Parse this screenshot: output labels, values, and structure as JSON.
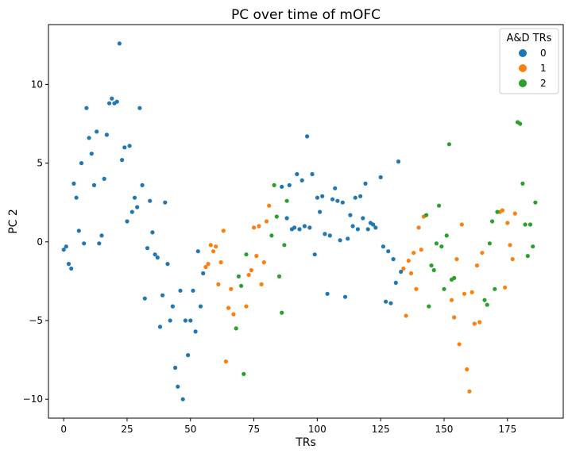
{
  "chart_data": {
    "type": "scatter",
    "title": "PC over time of mOFC",
    "xlabel": "TRs",
    "ylabel": "PC 2",
    "xlim": [
      -6,
      197
    ],
    "ylim": [
      -11.2,
      13.8
    ],
    "xticks": [
      0,
      25,
      50,
      75,
      100,
      125,
      150,
      175
    ],
    "yticks": [
      -10,
      -5,
      0,
      5,
      10
    ],
    "grid": false,
    "legend": {
      "title": "A&D TRs",
      "placement": "top-right"
    },
    "series": [
      {
        "name": "0",
        "color": "#1f77b4",
        "points": [
          [
            0,
            -0.5
          ],
          [
            1,
            -0.3
          ],
          [
            2,
            -1.4
          ],
          [
            3,
            -1.7
          ],
          [
            4,
            3.7
          ],
          [
            5,
            2.8
          ],
          [
            6,
            0.7
          ],
          [
            7,
            5.0
          ],
          [
            8,
            -0.1
          ],
          [
            9,
            8.5
          ],
          [
            10,
            6.6
          ],
          [
            11,
            5.6
          ],
          [
            12,
            3.6
          ],
          [
            13,
            7.0
          ],
          [
            14,
            -0.1
          ],
          [
            15,
            0.4
          ],
          [
            16,
            4.0
          ],
          [
            17,
            6.8
          ],
          [
            18,
            8.8
          ],
          [
            19,
            9.1
          ],
          [
            20,
            8.8
          ],
          [
            21,
            8.9
          ],
          [
            22,
            12.6
          ],
          [
            23,
            5.2
          ],
          [
            24,
            6.0
          ],
          [
            25,
            1.3
          ],
          [
            26,
            6.1
          ],
          [
            27,
            1.9
          ],
          [
            28,
            2.8
          ],
          [
            29,
            2.2
          ],
          [
            30,
            8.5
          ],
          [
            31,
            3.6
          ],
          [
            32,
            -3.6
          ],
          [
            33,
            -0.4
          ],
          [
            34,
            2.6
          ],
          [
            35,
            0.6
          ],
          [
            36,
            -0.8
          ],
          [
            37,
            -1.0
          ],
          [
            38,
            -5.4
          ],
          [
            39,
            -3.4
          ],
          [
            40,
            2.5
          ],
          [
            41,
            -1.4
          ],
          [
            42,
            -5.0
          ],
          [
            43,
            -4.1
          ],
          [
            44,
            -8.0
          ],
          [
            45,
            -9.2
          ],
          [
            46,
            -3.1
          ],
          [
            47,
            -10.0
          ],
          [
            48,
            -5.0
          ],
          [
            49,
            -7.2
          ],
          [
            50,
            -5.0
          ],
          [
            51,
            -3.1
          ],
          [
            52,
            -5.7
          ],
          [
            53,
            -0.6
          ],
          [
            54,
            -4.1
          ],
          [
            55,
            -2.0
          ],
          [
            86,
            3.5
          ],
          [
            88,
            1.5
          ],
          [
            89,
            3.6
          ],
          [
            90,
            0.8
          ],
          [
            91,
            0.9
          ],
          [
            92,
            4.3
          ],
          [
            93,
            0.8
          ],
          [
            94,
            3.9
          ],
          [
            95,
            1.0
          ],
          [
            96,
            6.7
          ],
          [
            97,
            0.9
          ],
          [
            98,
            4.3
          ],
          [
            99,
            -0.8
          ],
          [
            100,
            2.8
          ],
          [
            101,
            1.9
          ],
          [
            102,
            2.9
          ],
          [
            103,
            0.5
          ],
          [
            104,
            -3.3
          ],
          [
            105,
            0.4
          ],
          [
            106,
            2.7
          ],
          [
            107,
            3.4
          ],
          [
            108,
            2.6
          ],
          [
            109,
            0.1
          ],
          [
            110,
            2.5
          ],
          [
            111,
            -3.5
          ],
          [
            112,
            0.2
          ],
          [
            113,
            1.7
          ],
          [
            114,
            1.0
          ],
          [
            115,
            2.8
          ],
          [
            116,
            0.8
          ],
          [
            117,
            2.9
          ],
          [
            118,
            1.5
          ],
          [
            119,
            3.7
          ],
          [
            120,
            0.8
          ],
          [
            121,
            1.2
          ],
          [
            122,
            1.1
          ],
          [
            123,
            0.9
          ],
          [
            125,
            4.1
          ],
          [
            126,
            -0.3
          ],
          [
            127,
            -3.8
          ],
          [
            128,
            -0.6
          ],
          [
            129,
            -3.9
          ],
          [
            130,
            -1.1
          ],
          [
            131,
            -2.6
          ],
          [
            132,
            5.1
          ],
          [
            133,
            -1.9
          ]
        ]
      },
      {
        "name": "1",
        "color": "#ff7f0e",
        "points": [
          [
            56,
            -1.6
          ],
          [
            57,
            -1.4
          ],
          [
            58,
            -0.2
          ],
          [
            59,
            -0.6
          ],
          [
            60,
            -0.3
          ],
          [
            61,
            -2.7
          ],
          [
            62,
            -1.3
          ],
          [
            63,
            0.7
          ],
          [
            64,
            -7.6
          ],
          [
            65,
            -4.2
          ],
          [
            66,
            -3.0
          ],
          [
            67,
            -4.6
          ],
          [
            72,
            -4.1
          ],
          [
            73,
            -2.1
          ],
          [
            74,
            -1.8
          ],
          [
            75,
            0.9
          ],
          [
            76,
            -0.9
          ],
          [
            77,
            1.0
          ],
          [
            78,
            -2.7
          ],
          [
            79,
            -1.3
          ],
          [
            80,
            1.3
          ],
          [
            81,
            2.3
          ],
          [
            134,
            -1.7
          ],
          [
            135,
            -4.7
          ],
          [
            136,
            -1.2
          ],
          [
            137,
            -2.0
          ],
          [
            138,
            -0.7
          ],
          [
            139,
            -3.0
          ],
          [
            140,
            0.9
          ],
          [
            141,
            -0.5
          ],
          [
            142,
            1.6
          ],
          [
            153,
            -3.7
          ],
          [
            154,
            -4.8
          ],
          [
            155,
            -1.1
          ],
          [
            156,
            -6.5
          ],
          [
            157,
            1.1
          ],
          [
            158,
            -3.3
          ],
          [
            159,
            -8.1
          ],
          [
            160,
            -9.5
          ],
          [
            161,
            -3.2
          ],
          [
            162,
            -5.2
          ],
          [
            163,
            -1.5
          ],
          [
            164,
            -5.1
          ],
          [
            165,
            -0.7
          ],
          [
            172,
            1.9
          ],
          [
            173,
            2.0
          ],
          [
            174,
            -2.9
          ],
          [
            175,
            1.2
          ],
          [
            176,
            -0.2
          ],
          [
            177,
            -1.1
          ],
          [
            178,
            1.8
          ]
        ]
      },
      {
        "name": "2",
        "color": "#2ca02c",
        "points": [
          [
            68,
            -5.5
          ],
          [
            69,
            -2.2
          ],
          [
            70,
            -2.8
          ],
          [
            71,
            -8.4
          ],
          [
            72,
            -0.8
          ],
          [
            82,
            0.4
          ],
          [
            83,
            3.6
          ],
          [
            84,
            1.6
          ],
          [
            85,
            -2.2
          ],
          [
            86,
            -4.5
          ],
          [
            87,
            -0.2
          ],
          [
            88,
            2.6
          ],
          [
            143,
            1.7
          ],
          [
            144,
            -4.1
          ],
          [
            145,
            -1.5
          ],
          [
            146,
            -1.8
          ],
          [
            147,
            -0.1
          ],
          [
            148,
            2.3
          ],
          [
            149,
            -0.3
          ],
          [
            150,
            -3.0
          ],
          [
            151,
            0.4
          ],
          [
            152,
            6.2
          ],
          [
            153,
            -2.4
          ],
          [
            154,
            -2.3
          ],
          [
            166,
            -3.7
          ],
          [
            167,
            -4.0
          ],
          [
            168,
            -0.1
          ],
          [
            169,
            1.3
          ],
          [
            170,
            -3.0
          ],
          [
            171,
            1.9
          ],
          [
            179,
            7.6
          ],
          [
            180,
            7.5
          ],
          [
            181,
            3.7
          ],
          [
            182,
            1.1
          ],
          [
            183,
            -0.9
          ],
          [
            184,
            1.1
          ],
          [
            185,
            -0.3
          ],
          [
            186,
            2.5
          ]
        ]
      }
    ]
  }
}
